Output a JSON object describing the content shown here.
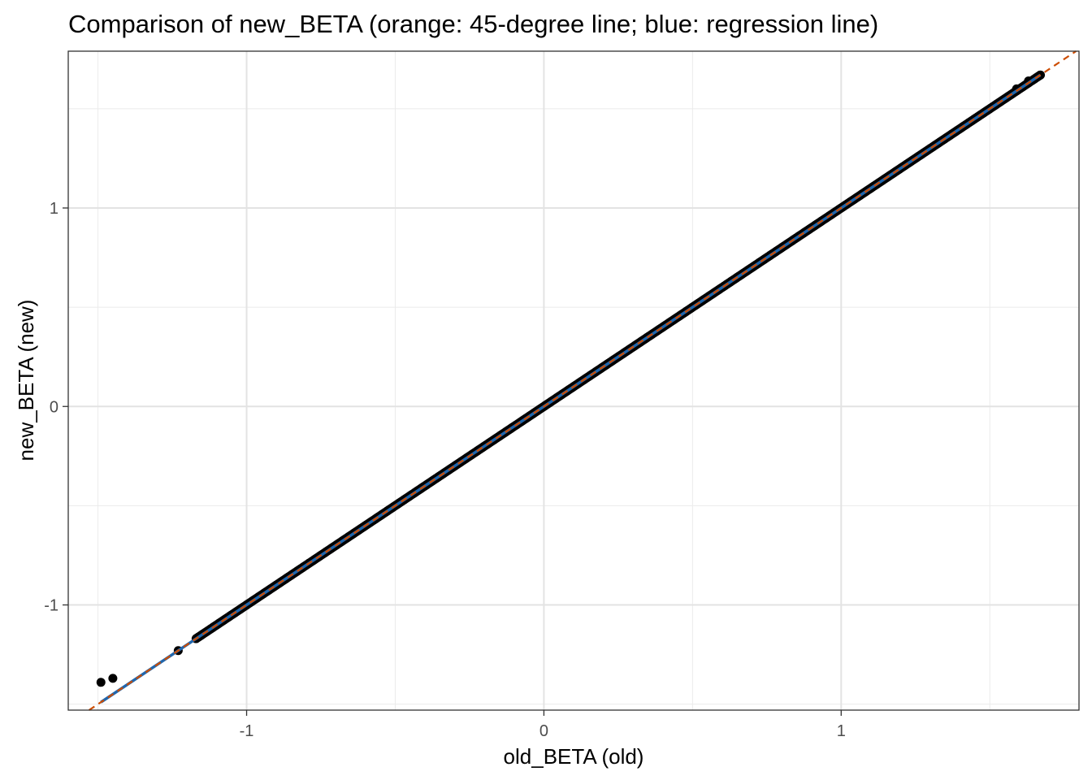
{
  "chart_data": {
    "type": "scatter",
    "title": "Comparison of new_BETA (orange: 45-degree line; blue: regression line)",
    "xlabel": "old_BETA (old)",
    "ylabel": "new_BETA (new)",
    "xlim": [
      -1.6,
      1.8
    ],
    "ylim": [
      -1.53,
      1.79
    ],
    "x_ticks": [
      -1,
      0,
      1
    ],
    "y_ticks": [
      -1,
      0,
      1
    ],
    "x_tick_labels": [
      "-1",
      "0",
      "1"
    ],
    "y_tick_labels": [
      "-1",
      "0",
      "1"
    ],
    "grid": true,
    "theme": "bw",
    "points": {
      "color": "#000000",
      "dense_range": [
        -1.17,
        1.67
      ],
      "sparse": [
        [
          -1.49,
          -1.39
        ],
        [
          -1.45,
          -1.37
        ],
        [
          -1.23,
          -1.23
        ],
        [
          1.59,
          1.6
        ],
        [
          1.63,
          1.64
        ],
        [
          1.67,
          1.67
        ]
      ]
    },
    "lines": [
      {
        "name": "45-degree line",
        "color": "#cc4c02",
        "style": "dashed",
        "slope": 1,
        "intercept": 0
      },
      {
        "name": "regression line",
        "color": "#2166ac",
        "style": "solid",
        "slope": 1,
        "intercept": 0
      }
    ]
  }
}
